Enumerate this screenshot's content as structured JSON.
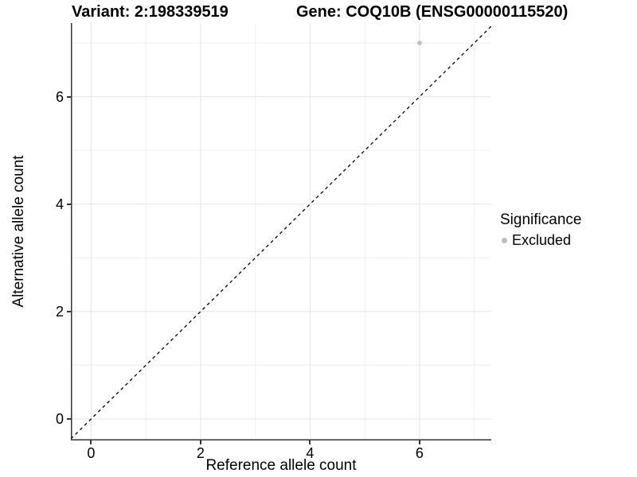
{
  "chart_data": {
    "type": "scatter",
    "titles": {
      "left": "Variant: 2:198339519",
      "right": "Gene: COQ10B (ENSG00000115520)"
    },
    "xlabel": "Reference allele count",
    "ylabel": "Alternative allele count",
    "xlim": [
      -0.37,
      7.31
    ],
    "ylim": [
      -0.4,
      7.37
    ],
    "x_major_ticks": [
      0,
      2,
      4,
      6
    ],
    "y_major_ticks": [
      0,
      2,
      4,
      6
    ],
    "x_minor_gridlines": [
      1,
      3,
      5,
      7
    ],
    "y_minor_gridlines": [
      1,
      3,
      5,
      7
    ],
    "points": [
      {
        "x": 6,
        "y": 7,
        "significance": "Excluded"
      }
    ],
    "identity_line": {
      "shown": true,
      "style": "dashed",
      "slope": 1,
      "intercept": 0
    },
    "legend": {
      "title": "Significance",
      "position": "right",
      "entries": [
        {
          "label": "Excluded",
          "color": "#bdbdbd"
        }
      ]
    },
    "colors": {
      "point": "#bdbdbd",
      "grid_major": "#e4e4e4",
      "grid_minor": "#f0f0f0",
      "axis_line": "#333333",
      "dashed_line": "#000000",
      "text": "#000000",
      "background": "#ffffff"
    },
    "grid": true
  }
}
